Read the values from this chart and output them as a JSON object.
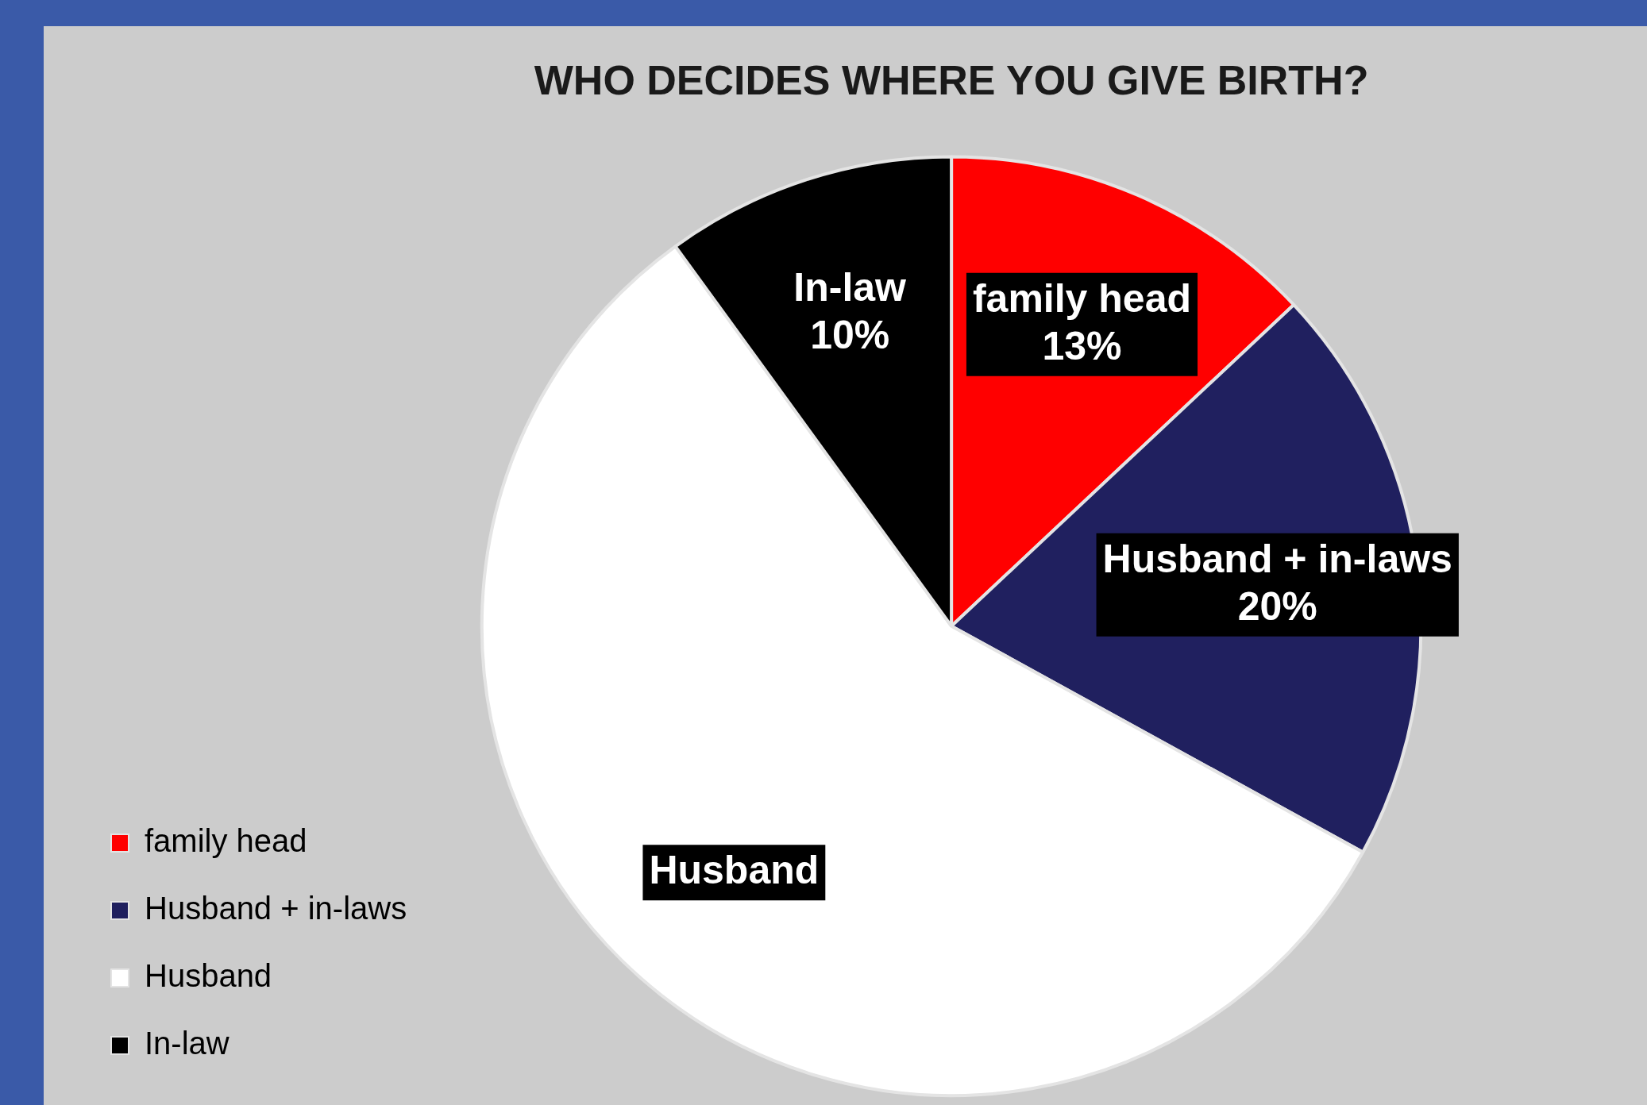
{
  "chart_data": {
    "type": "pie",
    "title": "WHO DECIDES WHERE YOU GIVE BIRTH?",
    "categories": [
      "family head",
      "Husband + in-laws",
      "Husband",
      "In-law"
    ],
    "values": [
      13,
      20,
      57,
      10
    ],
    "colors": [
      "#ff0000",
      "#20205f",
      "#ffffff",
      "#000000"
    ],
    "value_labels": [
      "13%",
      "20%",
      null,
      "10%"
    ],
    "legend": "bottom left"
  }
}
